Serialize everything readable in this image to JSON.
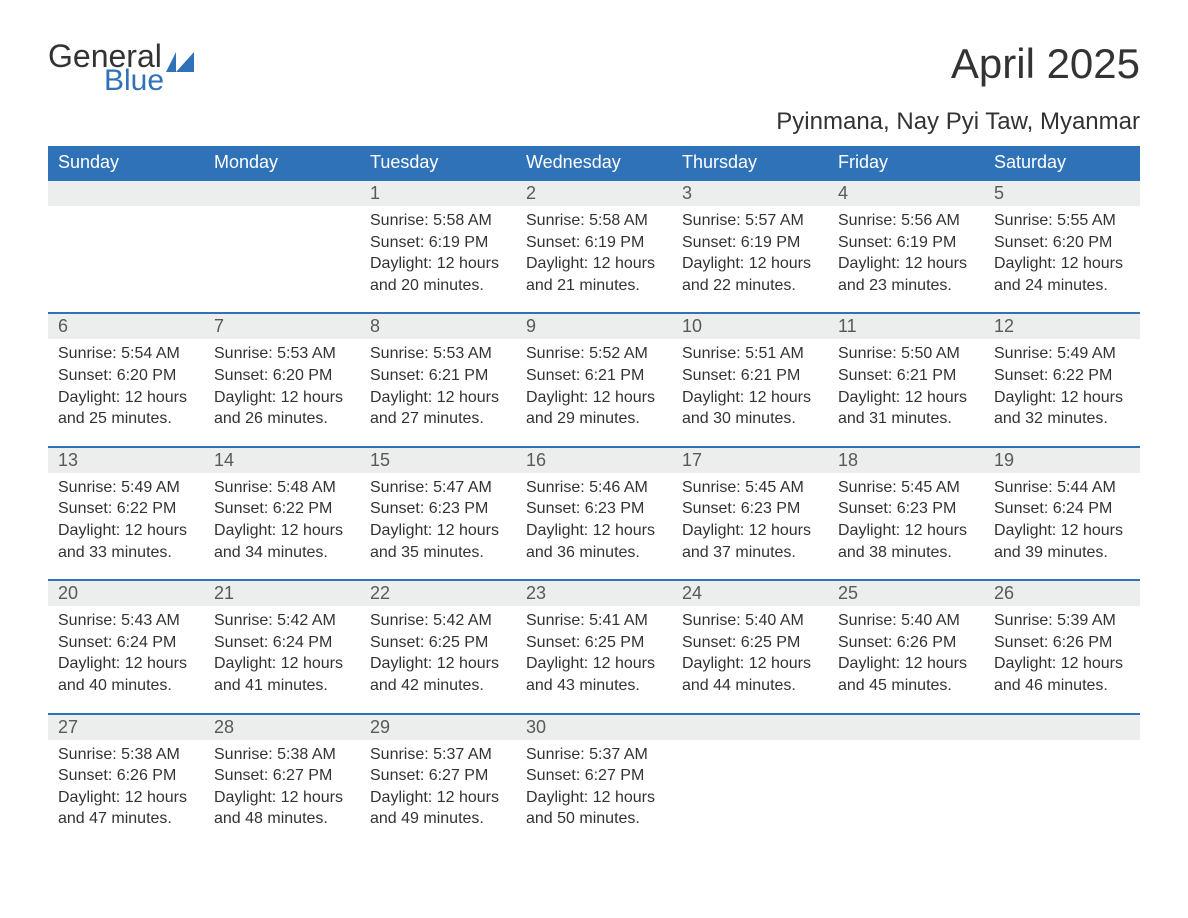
{
  "logo": {
    "general": "General",
    "blue": "Blue",
    "general_color": "#333333",
    "blue_color": "#2f72b8",
    "flag_color": "#2f72b8"
  },
  "header": {
    "title": "April 2025",
    "subtitle": "Pyinmana, Nay Pyi Taw, Myanmar"
  },
  "style": {
    "header_bg": "#2f72b8",
    "header_fg": "#ffffff",
    "daybar_bg": "#eceded",
    "daybar_border": "#2f72b8",
    "daybar_fg": "#595959",
    "body_fg": "#333333",
    "background": "#ffffff",
    "title_fontsize": 42,
    "subtitle_fontsize": 24,
    "weekday_fontsize": 18,
    "daynum_fontsize": 18,
    "body_fontsize": 16
  },
  "weekdays": [
    "Sunday",
    "Monday",
    "Tuesday",
    "Wednesday",
    "Thursday",
    "Friday",
    "Saturday"
  ],
  "weeks": [
    [
      {
        "day": "",
        "sunrise": "",
        "sunset": "",
        "daylight1": "",
        "daylight2": ""
      },
      {
        "day": "",
        "sunrise": "",
        "sunset": "",
        "daylight1": "",
        "daylight2": ""
      },
      {
        "day": "1",
        "sunrise": "Sunrise: 5:58 AM",
        "sunset": "Sunset: 6:19 PM",
        "daylight1": "Daylight: 12 hours",
        "daylight2": "and 20 minutes."
      },
      {
        "day": "2",
        "sunrise": "Sunrise: 5:58 AM",
        "sunset": "Sunset: 6:19 PM",
        "daylight1": "Daylight: 12 hours",
        "daylight2": "and 21 minutes."
      },
      {
        "day": "3",
        "sunrise": "Sunrise: 5:57 AM",
        "sunset": "Sunset: 6:19 PM",
        "daylight1": "Daylight: 12 hours",
        "daylight2": "and 22 minutes."
      },
      {
        "day": "4",
        "sunrise": "Sunrise: 5:56 AM",
        "sunset": "Sunset: 6:19 PM",
        "daylight1": "Daylight: 12 hours",
        "daylight2": "and 23 minutes."
      },
      {
        "day": "5",
        "sunrise": "Sunrise: 5:55 AM",
        "sunset": "Sunset: 6:20 PM",
        "daylight1": "Daylight: 12 hours",
        "daylight2": "and 24 minutes."
      }
    ],
    [
      {
        "day": "6",
        "sunrise": "Sunrise: 5:54 AM",
        "sunset": "Sunset: 6:20 PM",
        "daylight1": "Daylight: 12 hours",
        "daylight2": "and 25 minutes."
      },
      {
        "day": "7",
        "sunrise": "Sunrise: 5:53 AM",
        "sunset": "Sunset: 6:20 PM",
        "daylight1": "Daylight: 12 hours",
        "daylight2": "and 26 minutes."
      },
      {
        "day": "8",
        "sunrise": "Sunrise: 5:53 AM",
        "sunset": "Sunset: 6:21 PM",
        "daylight1": "Daylight: 12 hours",
        "daylight2": "and 27 minutes."
      },
      {
        "day": "9",
        "sunrise": "Sunrise: 5:52 AM",
        "sunset": "Sunset: 6:21 PM",
        "daylight1": "Daylight: 12 hours",
        "daylight2": "and 29 minutes."
      },
      {
        "day": "10",
        "sunrise": "Sunrise: 5:51 AM",
        "sunset": "Sunset: 6:21 PM",
        "daylight1": "Daylight: 12 hours",
        "daylight2": "and 30 minutes."
      },
      {
        "day": "11",
        "sunrise": "Sunrise: 5:50 AM",
        "sunset": "Sunset: 6:21 PM",
        "daylight1": "Daylight: 12 hours",
        "daylight2": "and 31 minutes."
      },
      {
        "day": "12",
        "sunrise": "Sunrise: 5:49 AM",
        "sunset": "Sunset: 6:22 PM",
        "daylight1": "Daylight: 12 hours",
        "daylight2": "and 32 minutes."
      }
    ],
    [
      {
        "day": "13",
        "sunrise": "Sunrise: 5:49 AM",
        "sunset": "Sunset: 6:22 PM",
        "daylight1": "Daylight: 12 hours",
        "daylight2": "and 33 minutes."
      },
      {
        "day": "14",
        "sunrise": "Sunrise: 5:48 AM",
        "sunset": "Sunset: 6:22 PM",
        "daylight1": "Daylight: 12 hours",
        "daylight2": "and 34 minutes."
      },
      {
        "day": "15",
        "sunrise": "Sunrise: 5:47 AM",
        "sunset": "Sunset: 6:23 PM",
        "daylight1": "Daylight: 12 hours",
        "daylight2": "and 35 minutes."
      },
      {
        "day": "16",
        "sunrise": "Sunrise: 5:46 AM",
        "sunset": "Sunset: 6:23 PM",
        "daylight1": "Daylight: 12 hours",
        "daylight2": "and 36 minutes."
      },
      {
        "day": "17",
        "sunrise": "Sunrise: 5:45 AM",
        "sunset": "Sunset: 6:23 PM",
        "daylight1": "Daylight: 12 hours",
        "daylight2": "and 37 minutes."
      },
      {
        "day": "18",
        "sunrise": "Sunrise: 5:45 AM",
        "sunset": "Sunset: 6:23 PM",
        "daylight1": "Daylight: 12 hours",
        "daylight2": "and 38 minutes."
      },
      {
        "day": "19",
        "sunrise": "Sunrise: 5:44 AM",
        "sunset": "Sunset: 6:24 PM",
        "daylight1": "Daylight: 12 hours",
        "daylight2": "and 39 minutes."
      }
    ],
    [
      {
        "day": "20",
        "sunrise": "Sunrise: 5:43 AM",
        "sunset": "Sunset: 6:24 PM",
        "daylight1": "Daylight: 12 hours",
        "daylight2": "and 40 minutes."
      },
      {
        "day": "21",
        "sunrise": "Sunrise: 5:42 AM",
        "sunset": "Sunset: 6:24 PM",
        "daylight1": "Daylight: 12 hours",
        "daylight2": "and 41 minutes."
      },
      {
        "day": "22",
        "sunrise": "Sunrise: 5:42 AM",
        "sunset": "Sunset: 6:25 PM",
        "daylight1": "Daylight: 12 hours",
        "daylight2": "and 42 minutes."
      },
      {
        "day": "23",
        "sunrise": "Sunrise: 5:41 AM",
        "sunset": "Sunset: 6:25 PM",
        "daylight1": "Daylight: 12 hours",
        "daylight2": "and 43 minutes."
      },
      {
        "day": "24",
        "sunrise": "Sunrise: 5:40 AM",
        "sunset": "Sunset: 6:25 PM",
        "daylight1": "Daylight: 12 hours",
        "daylight2": "and 44 minutes."
      },
      {
        "day": "25",
        "sunrise": "Sunrise: 5:40 AM",
        "sunset": "Sunset: 6:26 PM",
        "daylight1": "Daylight: 12 hours",
        "daylight2": "and 45 minutes."
      },
      {
        "day": "26",
        "sunrise": "Sunrise: 5:39 AM",
        "sunset": "Sunset: 6:26 PM",
        "daylight1": "Daylight: 12 hours",
        "daylight2": "and 46 minutes."
      }
    ],
    [
      {
        "day": "27",
        "sunrise": "Sunrise: 5:38 AM",
        "sunset": "Sunset: 6:26 PM",
        "daylight1": "Daylight: 12 hours",
        "daylight2": "and 47 minutes."
      },
      {
        "day": "28",
        "sunrise": "Sunrise: 5:38 AM",
        "sunset": "Sunset: 6:27 PM",
        "daylight1": "Daylight: 12 hours",
        "daylight2": "and 48 minutes."
      },
      {
        "day": "29",
        "sunrise": "Sunrise: 5:37 AM",
        "sunset": "Sunset: 6:27 PM",
        "daylight1": "Daylight: 12 hours",
        "daylight2": "and 49 minutes."
      },
      {
        "day": "30",
        "sunrise": "Sunrise: 5:37 AM",
        "sunset": "Sunset: 6:27 PM",
        "daylight1": "Daylight: 12 hours",
        "daylight2": "and 50 minutes."
      },
      {
        "day": "",
        "sunrise": "",
        "sunset": "",
        "daylight1": "",
        "daylight2": ""
      },
      {
        "day": "",
        "sunrise": "",
        "sunset": "",
        "daylight1": "",
        "daylight2": ""
      },
      {
        "day": "",
        "sunrise": "",
        "sunset": "",
        "daylight1": "",
        "daylight2": ""
      }
    ]
  ]
}
